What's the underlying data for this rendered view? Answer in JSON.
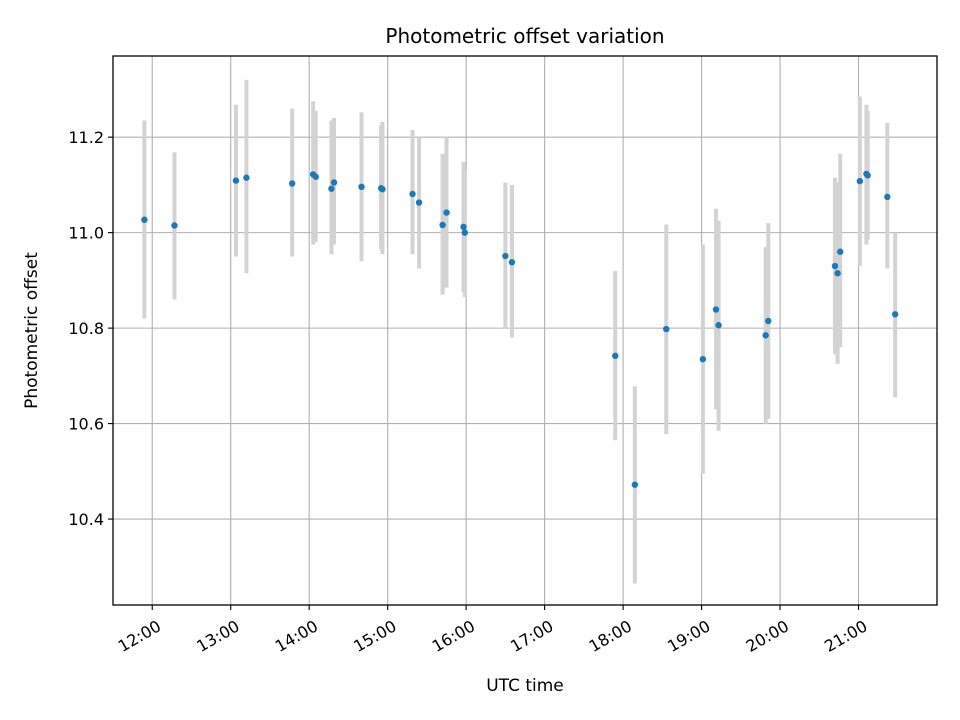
{
  "chart_data": {
    "type": "scatter",
    "title": "Photometric offset variation",
    "xlabel": "UTC time",
    "ylabel": "Photometric offset",
    "grid": true,
    "xlim": [
      "11:30",
      "22:00"
    ],
    "ylim": [
      10.22,
      11.37
    ],
    "x_ticks": [
      "12:00",
      "13:00",
      "14:00",
      "15:00",
      "16:00",
      "17:00",
      "18:00",
      "19:00",
      "20:00",
      "21:00"
    ],
    "y_ticks": [
      10.4,
      10.6,
      10.8,
      11.0,
      11.2
    ],
    "y_tick_labels": [
      "10.4",
      "10.6",
      "10.8",
      "11.0",
      "11.2"
    ],
    "colors": {
      "points": "#1f77b4",
      "errorbars": "#d3d3d3",
      "grid": "#b0b0b0"
    },
    "points": [
      {
        "x": "11:54",
        "y": 11.027,
        "ylow": 10.82,
        "yhigh": 11.235
      },
      {
        "x": "12:17",
        "y": 11.015,
        "ylow": 10.86,
        "yhigh": 11.168
      },
      {
        "x": "13:04",
        "y": 11.109,
        "ylow": 10.95,
        "yhigh": 11.268
      },
      {
        "x": "13:12",
        "y": 11.115,
        "ylow": 10.915,
        "yhigh": 11.32
      },
      {
        "x": "13:47",
        "y": 11.103,
        "ylow": 10.95,
        "yhigh": 11.26
      },
      {
        "x": "14:03",
        "y": 11.122,
        "ylow": 10.975,
        "yhigh": 11.275
      },
      {
        "x": "14:05",
        "y": 11.117,
        "ylow": 10.98,
        "yhigh": 11.255
      },
      {
        "x": "14:17",
        "y": 11.092,
        "ylow": 10.955,
        "yhigh": 11.235
      },
      {
        "x": "14:19",
        "y": 11.105,
        "ylow": 10.975,
        "yhigh": 11.24
      },
      {
        "x": "14:40",
        "y": 11.096,
        "ylow": 10.94,
        "yhigh": 11.252
      },
      {
        "x": "14:55",
        "y": 11.093,
        "ylow": 10.965,
        "yhigh": 11.225
      },
      {
        "x": "14:56",
        "y": 11.091,
        "ylow": 10.955,
        "yhigh": 11.232
      },
      {
        "x": "15:19",
        "y": 11.081,
        "ylow": 10.955,
        "yhigh": 11.215
      },
      {
        "x": "15:24",
        "y": 11.063,
        "ylow": 10.925,
        "yhigh": 11.2
      },
      {
        "x": "15:42",
        "y": 11.016,
        "ylow": 10.87,
        "yhigh": 11.165
      },
      {
        "x": "15:45",
        "y": 11.042,
        "ylow": 10.885,
        "yhigh": 11.2
      },
      {
        "x": "15:58",
        "y": 11.012,
        "ylow": 10.875,
        "yhigh": 11.148
      },
      {
        "x": "15:59",
        "y": 11.0,
        "ylow": 10.865,
        "yhigh": 11.132
      },
      {
        "x": "16:30",
        "y": 10.951,
        "ylow": 10.8,
        "yhigh": 11.105
      },
      {
        "x": "16:35",
        "y": 10.938,
        "ylow": 10.78,
        "yhigh": 11.1
      },
      {
        "x": "17:54",
        "y": 10.742,
        "ylow": 10.565,
        "yhigh": 10.92
      },
      {
        "x": "18:09",
        "y": 10.472,
        "ylow": 10.265,
        "yhigh": 10.678
      },
      {
        "x": "18:33",
        "y": 10.798,
        "ylow": 10.578,
        "yhigh": 11.017
      },
      {
        "x": "19:01",
        "y": 10.735,
        "ylow": 10.495,
        "yhigh": 10.975
      },
      {
        "x": "19:11",
        "y": 10.839,
        "ylow": 10.63,
        "yhigh": 11.05
      },
      {
        "x": "19:13",
        "y": 10.806,
        "ylow": 10.585,
        "yhigh": 11.025
      },
      {
        "x": "19:49",
        "y": 10.785,
        "ylow": 10.6,
        "yhigh": 10.97
      },
      {
        "x": "19:51",
        "y": 10.815,
        "ylow": 10.61,
        "yhigh": 11.02
      },
      {
        "x": "20:42",
        "y": 10.93,
        "ylow": 10.745,
        "yhigh": 11.115
      },
      {
        "x": "20:44",
        "y": 10.915,
        "ylow": 10.725,
        "yhigh": 11.105
      },
      {
        "x": "20:46",
        "y": 10.96,
        "ylow": 10.76,
        "yhigh": 11.165
      },
      {
        "x": "21:01",
        "y": 11.108,
        "ylow": 10.93,
        "yhigh": 11.285
      },
      {
        "x": "21:06",
        "y": 11.123,
        "ylow": 10.975,
        "yhigh": 11.268
      },
      {
        "x": "21:07",
        "y": 11.12,
        "ylow": 10.985,
        "yhigh": 11.255
      },
      {
        "x": "21:22",
        "y": 11.075,
        "ylow": 10.925,
        "yhigh": 11.23
      },
      {
        "x": "21:28",
        "y": 10.829,
        "ylow": 10.655,
        "yhigh": 11.0
      }
    ]
  }
}
